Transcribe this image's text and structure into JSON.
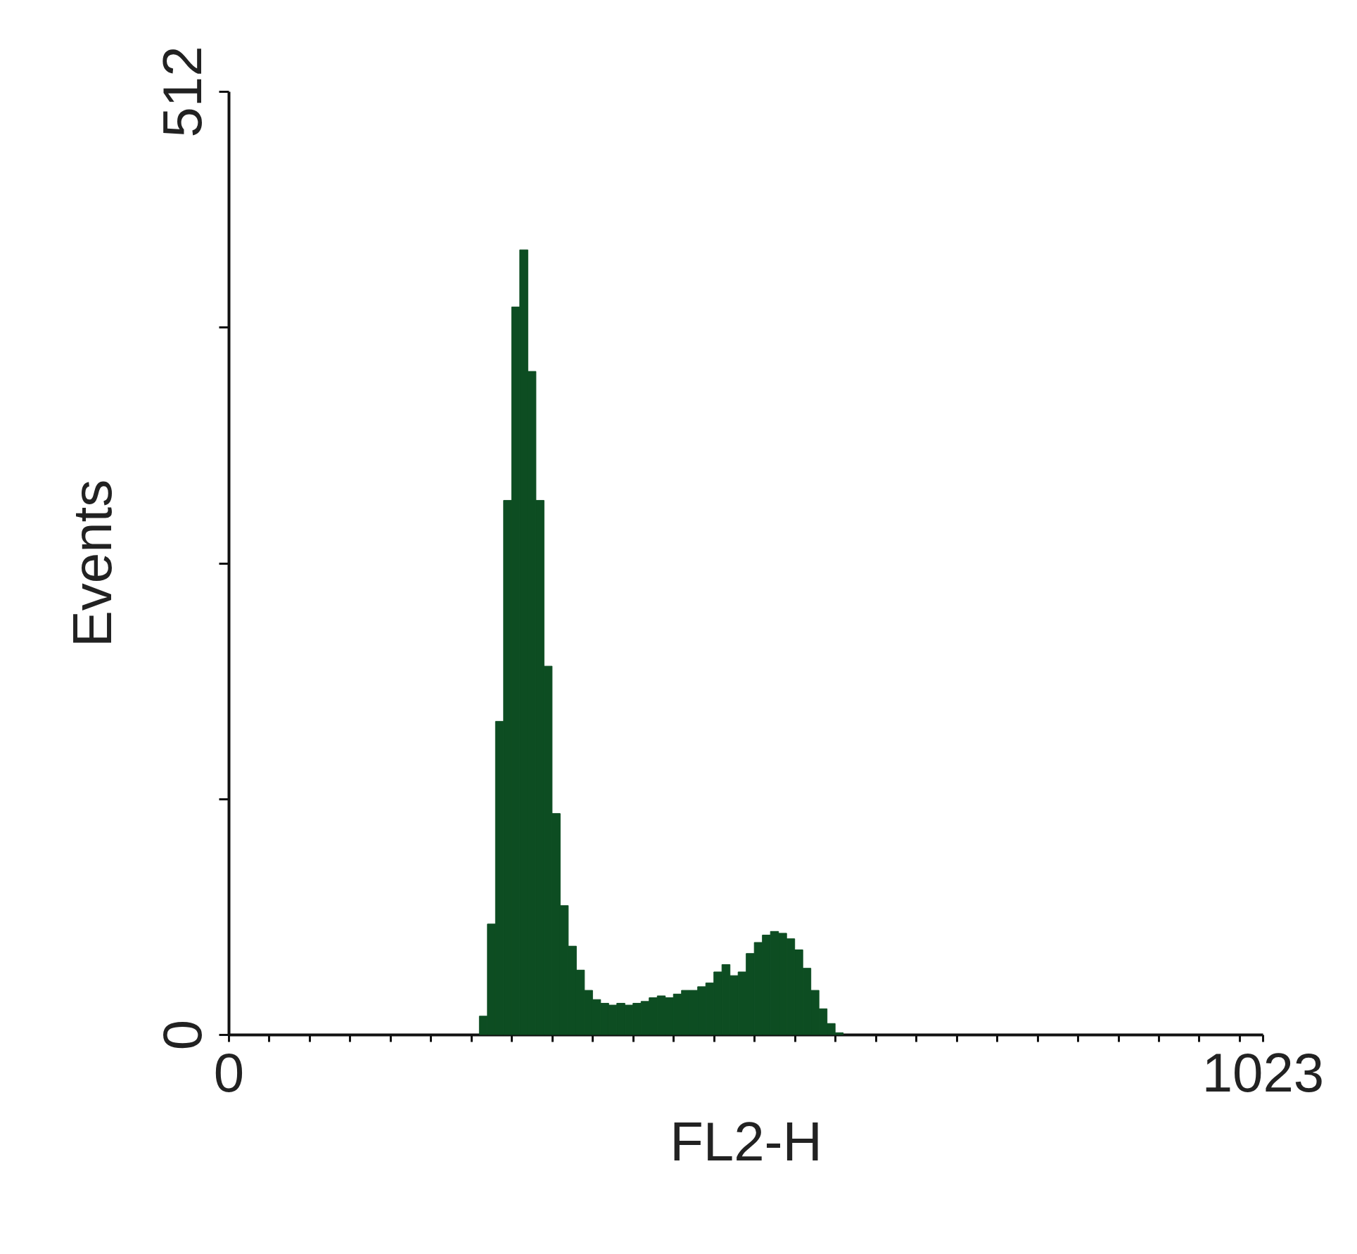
{
  "chart_data": {
    "type": "histogram",
    "xlabel": "FL2-H",
    "ylabel": "Events",
    "bins": [
      248,
      256,
      264,
      272,
      280,
      288,
      296,
      304,
      312,
      320,
      328,
      336,
      344,
      352,
      360,
      368,
      376,
      384,
      392,
      400,
      408,
      416,
      424,
      432,
      440,
      448,
      456,
      464,
      472,
      480,
      488,
      496,
      504,
      512,
      520,
      528,
      536,
      544,
      552,
      560,
      568,
      576,
      584,
      592,
      600,
      608
    ],
    "values": [
      10,
      60,
      170,
      290,
      395,
      426,
      360,
      290,
      200,
      120,
      70,
      48,
      35,
      24,
      19,
      17,
      16,
      17,
      16,
      17,
      18,
      20,
      21,
      20,
      22,
      24,
      24,
      26,
      28,
      34,
      38,
      32,
      34,
      44,
      50,
      54,
      56,
      55,
      52,
      46,
      36,
      24,
      14,
      6,
      1
    ],
    "color": "#0d4d22",
    "xlim": [
      0,
      1023
    ],
    "xticks": [
      0,
      {
        "value": 40,
        "label": null
      },
      {
        "value": 80,
        "label": null
      },
      {
        "value": 120,
        "label": null
      },
      {
        "value": 160,
        "label": null
      },
      {
        "value": 200,
        "label": null
      },
      {
        "value": 240,
        "label": null
      },
      {
        "value": 280,
        "label": null
      },
      {
        "value": 320,
        "label": null
      },
      {
        "value": 360,
        "label": null
      },
      {
        "value": 400,
        "label": null
      },
      {
        "value": 440,
        "label": null
      },
      {
        "value": 480,
        "label": null
      },
      {
        "value": 520,
        "label": null
      },
      {
        "value": 560,
        "label": null
      },
      {
        "value": 600,
        "label": null
      },
      {
        "value": 640,
        "label": null
      },
      {
        "value": 680,
        "label": null
      },
      {
        "value": 720,
        "label": null
      },
      {
        "value": 760,
        "label": null
      },
      {
        "value": 800,
        "label": null
      },
      {
        "value": 840,
        "label": null
      },
      {
        "value": 880,
        "label": null
      },
      {
        "value": 920,
        "label": null
      },
      {
        "value": 960,
        "label": null
      },
      {
        "value": 1000,
        "label": null
      },
      1023
    ],
    "ylim": [
      0,
      512
    ],
    "yticks": [
      0,
      {
        "value": 128,
        "label": null
      },
      {
        "value": 256,
        "label": null
      },
      {
        "value": 384,
        "label": null
      },
      512
    ]
  }
}
